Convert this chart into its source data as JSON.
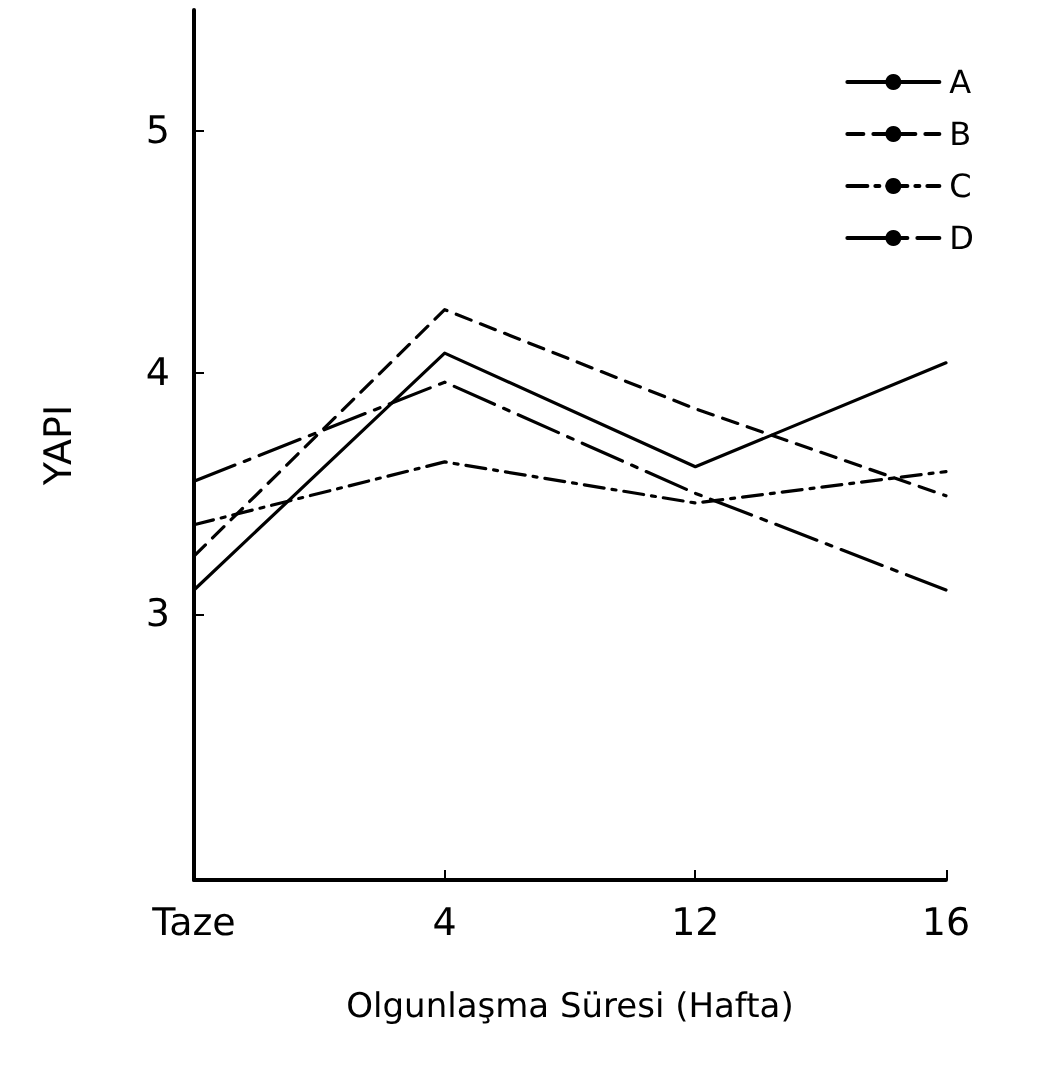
{
  "chart_data": {
    "type": "line",
    "xlabel": "Olgunlaşma Süresi (Hafta)",
    "ylabel": "YAPI",
    "categories": [
      "Taze",
      "4",
      "12",
      "16"
    ],
    "series": [
      {
        "name": "A",
        "color": "#000000",
        "line_style": "solid",
        "values": [
          3.1,
          4.08,
          3.61,
          4.04
        ]
      },
      {
        "name": "B",
        "color": "#000000",
        "line_style": "dashed",
        "values": [
          3.24,
          4.26,
          3.85,
          3.49
        ]
      },
      {
        "name": "C",
        "color": "#000000",
        "line_style": "dashdot",
        "values": [
          3.37,
          3.63,
          3.46,
          3.59
        ]
      },
      {
        "name": "D",
        "color": "#000000",
        "line_style": "longdashdot",
        "values": [
          3.55,
          3.96,
          3.5,
          3.1
        ]
      }
    ],
    "ylim": [
      1.9,
      5.5
    ],
    "yticks": [
      3,
      4,
      5
    ],
    "grid": false,
    "legend": "top right",
    "marker": "none"
  }
}
